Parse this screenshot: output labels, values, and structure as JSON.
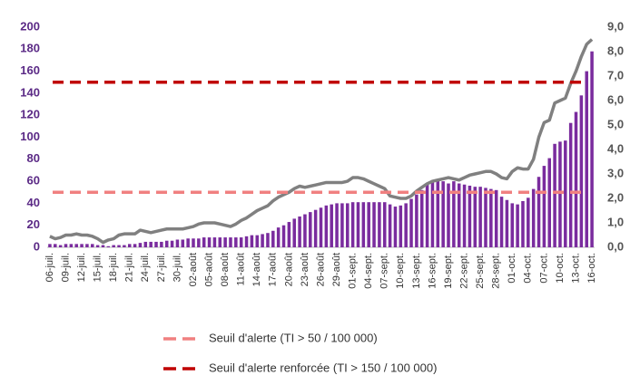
{
  "chart_data": {
    "type": "bar",
    "categories": [
      "06-juil.",
      null,
      null,
      "09-juil.",
      null,
      null,
      "12-juil.",
      null,
      null,
      "15-juil.",
      null,
      null,
      "18-juil.",
      null,
      null,
      "21-juil.",
      null,
      null,
      "24-juil.",
      null,
      null,
      "27-juil.",
      null,
      null,
      "30-juil.",
      null,
      null,
      "02-août",
      null,
      null,
      "05-août",
      null,
      null,
      "08-août",
      null,
      null,
      "11-août",
      null,
      null,
      "14-août",
      null,
      null,
      "17-août",
      null,
      null,
      "20-août",
      null,
      null,
      "23-août",
      null,
      null,
      "26-août",
      null,
      null,
      "29-août",
      null,
      null,
      "01-sept.",
      null,
      null,
      "04-sept.",
      null,
      null,
      "07-sept.",
      null,
      null,
      "10-sept.",
      null,
      null,
      "13-sept.",
      null,
      null,
      "16-sept.",
      null,
      null,
      "19-sept.",
      null,
      null,
      "22-sept.",
      null,
      null,
      "25-sept.",
      null,
      null,
      "28-sept.",
      null,
      null,
      "01-oct.",
      null,
      null,
      "04-oct.",
      null,
      null,
      "07-oct.",
      null,
      null,
      "10-oct.",
      null,
      null,
      "13-oct.",
      null,
      null,
      "16-oct."
    ],
    "series": [
      {
        "color": "#7a2c9e",
        "values": [
          3,
          3,
          2,
          3,
          3,
          3,
          3,
          3,
          3,
          2,
          2,
          1,
          2,
          2,
          2,
          3,
          3,
          4,
          5,
          5,
          5,
          5,
          6,
          6,
          7,
          7,
          8,
          8,
          8,
          9,
          9,
          9,
          9,
          9,
          9,
          9,
          9,
          10,
          11,
          11,
          12,
          13,
          15,
          18,
          20,
          23,
          26,
          28,
          30,
          32,
          34,
          36,
          38,
          39,
          40,
          40,
          40,
          41,
          41,
          41,
          41,
          41,
          41,
          41,
          39,
          37,
          38,
          40,
          44,
          48,
          52,
          57,
          61,
          62,
          60,
          58,
          60,
          58,
          57,
          56,
          55,
          55,
          54,
          53,
          52,
          46,
          43,
          40,
          39,
          42,
          45,
          53,
          64,
          74,
          81,
          94,
          96,
          97,
          113,
          123,
          138,
          160,
          178
        ]
      },
      {
        "color": "#808080",
        "axis": "y2",
        "type": "line",
        "values": [
          0.45,
          0.35,
          0.4,
          0.5,
          0.5,
          0.55,
          0.5,
          0.5,
          0.45,
          0.35,
          0.2,
          0.3,
          0.35,
          0.5,
          0.55,
          0.55,
          0.55,
          0.7,
          0.65,
          0.6,
          0.65,
          0.7,
          0.75,
          0.75,
          0.75,
          0.75,
          0.8,
          0.85,
          0.95,
          1.0,
          1.0,
          1.0,
          0.95,
          0.9,
          0.85,
          0.95,
          1.1,
          1.2,
          1.35,
          1.5,
          1.6,
          1.7,
          1.9,
          2.05,
          2.15,
          2.25,
          2.4,
          2.5,
          2.45,
          2.5,
          2.55,
          2.6,
          2.65,
          2.65,
          2.65,
          2.65,
          2.7,
          2.85,
          2.85,
          2.8,
          2.7,
          2.6,
          2.5,
          2.4,
          2.1,
          2.05,
          2.0,
          2.0,
          2.1,
          2.3,
          2.45,
          2.6,
          2.7,
          2.75,
          2.8,
          2.85,
          2.8,
          2.75,
          2.85,
          2.95,
          3.0,
          3.05,
          3.1,
          3.1,
          3.0,
          2.85,
          2.8,
          3.1,
          3.25,
          3.2,
          3.2,
          3.6,
          4.5,
          5.1,
          5.2,
          5.9,
          6.0,
          6.1,
          6.7,
          7.2,
          7.8,
          8.3,
          8.5
        ]
      }
    ],
    "reference_lines": [
      {
        "name": "Seuil d'alerte (TI > 50 / 100 000)",
        "value": 50,
        "color": "#f08080"
      },
      {
        "name": "Seuil d'alerte renforcée (TI > 150 / 100 000)",
        "value": 150,
        "color": "#c00000"
      }
    ],
    "ylim": [
      0,
      200
    ],
    "yticks": [
      0,
      20,
      40,
      60,
      80,
      100,
      120,
      140,
      160,
      180,
      200
    ],
    "y2lim": [
      0,
      9
    ],
    "y2ticks": [
      {
        "value": 0,
        "label": "0,0"
      },
      {
        "value": 1,
        "label": "1,0"
      },
      {
        "value": 2,
        "label": "2,0"
      },
      {
        "value": 3,
        "label": "3,0"
      },
      {
        "value": 4,
        "label": "4,0"
      },
      {
        "value": 5,
        "label": "5,0"
      },
      {
        "value": 6,
        "label": "6,0"
      },
      {
        "value": 7,
        "label": "7,0"
      },
      {
        "value": 8,
        "label": "8,0"
      },
      {
        "value": 9,
        "label": "9,0"
      }
    ],
    "legend": "bottom"
  }
}
